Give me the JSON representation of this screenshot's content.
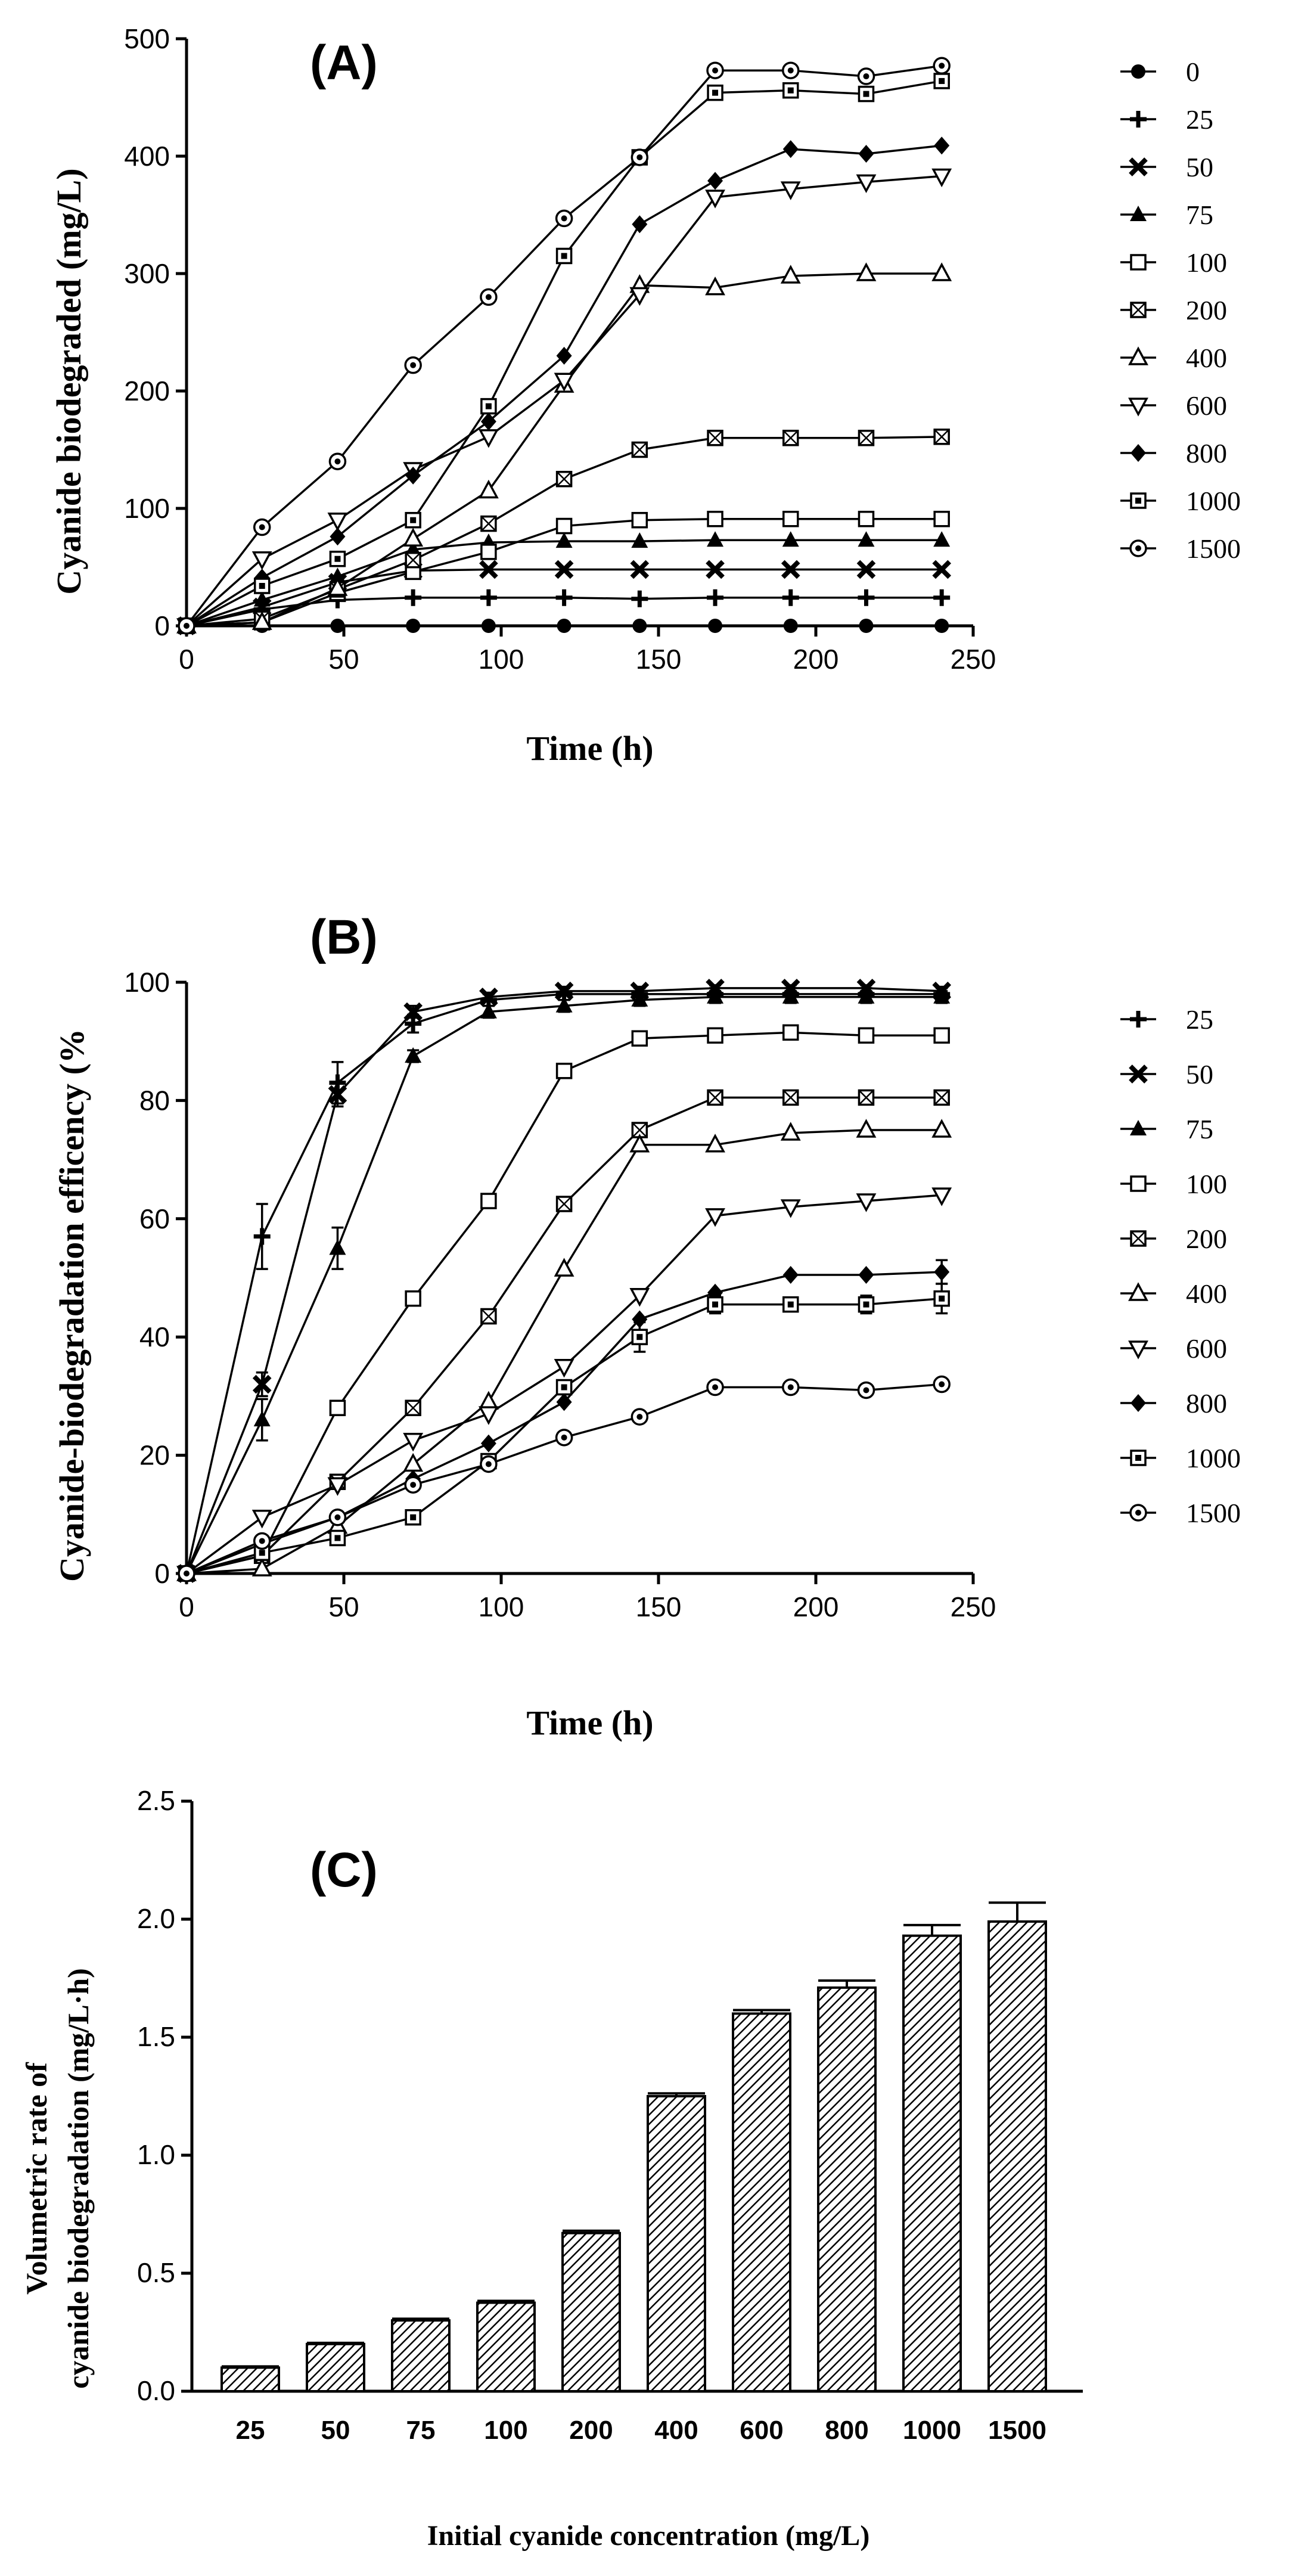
{
  "chart_data": [
    {
      "type": "line",
      "panel_label": "(A)",
      "title": "",
      "xlabel": "Time (h)",
      "ylabel": "Cyanide biodegraded (mg/L)",
      "xlim": [
        0,
        250
      ],
      "ylim": [
        0,
        500
      ],
      "xticks": [
        0,
        50,
        100,
        150,
        200,
        250
      ],
      "yticks": [
        0,
        100,
        200,
        300,
        400,
        500
      ],
      "legend_position": "right",
      "x": [
        0,
        24,
        48,
        72,
        96,
        120,
        144,
        168,
        192,
        216,
        240
      ],
      "series": [
        {
          "name": "0",
          "marker": "filled-circle",
          "values": [
            0,
            0,
            0,
            0,
            0,
            0,
            0,
            0,
            0,
            0,
            0
          ]
        },
        {
          "name": "25",
          "marker": "plus",
          "values": [
            0,
            14,
            22,
            24,
            24,
            24,
            23,
            24,
            24,
            24,
            24
          ]
        },
        {
          "name": "50",
          "marker": "cross",
          "values": [
            0,
            16,
            37,
            47,
            48,
            48,
            48,
            48,
            48,
            48,
            48
          ]
        },
        {
          "name": "75",
          "marker": "filled-triangle",
          "values": [
            0,
            22,
            42,
            65,
            71,
            72,
            72,
            73,
            73,
            73,
            73
          ]
        },
        {
          "name": "100",
          "marker": "open-square",
          "values": [
            0,
            3,
            28,
            46,
            63,
            85,
            90,
            91,
            91,
            91,
            91
          ]
        },
        {
          "name": "200",
          "marker": "crossed-square",
          "values": [
            0,
            6,
            31,
            56,
            87,
            125,
            150,
            160,
            160,
            160,
            161
          ]
        },
        {
          "name": "400",
          "marker": "open-triangle",
          "values": [
            0,
            3,
            32,
            74,
            115,
            205,
            290,
            288,
            298,
            300,
            300
          ]
        },
        {
          "name": "600",
          "marker": "open-triangle-down",
          "values": [
            0,
            57,
            90,
            133,
            161,
            209,
            282,
            365,
            372,
            378,
            383
          ]
        },
        {
          "name": "800",
          "marker": "filled-diamond",
          "values": [
            0,
            41,
            76,
            128,
            174,
            230,
            342,
            379,
            406,
            402,
            409
          ]
        },
        {
          "name": "1000",
          "marker": "dotted-square",
          "values": [
            0,
            34,
            57,
            90,
            187,
            315,
            399,
            454,
            456,
            453,
            464
          ]
        },
        {
          "name": "1500",
          "marker": "circle-dot",
          "values": [
            0,
            84,
            140,
            222,
            280,
            347,
            399,
            473,
            473,
            468,
            477
          ]
        }
      ]
    },
    {
      "type": "line",
      "panel_label": "(B)",
      "title": "",
      "xlabel": "Time (h)",
      "ylabel": "Cyanide-biodegradation efficency (%",
      "xlim": [
        0,
        250
      ],
      "ylim": [
        0,
        100
      ],
      "xticks": [
        0,
        50,
        100,
        150,
        200,
        250
      ],
      "yticks": [
        0,
        20,
        40,
        60,
        80,
        100
      ],
      "legend_position": "right",
      "x": [
        0,
        24,
        48,
        72,
        96,
        120,
        144,
        168,
        192,
        216,
        240
      ],
      "series": [
        {
          "name": "25",
          "marker": "plus",
          "values": [
            0,
            57,
            83,
            93,
            97,
            98,
            98,
            98,
            98,
            98,
            98
          ],
          "errors": [
            0,
            5.5,
            3.5,
            1.5,
            1,
            1,
            1,
            1,
            1,
            1,
            1
          ]
        },
        {
          "name": "50",
          "marker": "cross",
          "values": [
            0,
            32,
            81,
            95,
            97.5,
            98.5,
            98.5,
            99,
            99,
            99,
            98.5
          ],
          "errors": [
            0,
            2,
            2,
            1,
            0.5,
            0.5,
            0.5,
            0.5,
            0.5,
            0.5,
            0.5
          ]
        },
        {
          "name": "75",
          "marker": "filled-triangle",
          "values": [
            0,
            26,
            55,
            87.5,
            95,
            96,
            97,
            97.5,
            97.5,
            97.5,
            97.5
          ],
          "errors": [
            0,
            3.5,
            3.5,
            1,
            1,
            1,
            1,
            1,
            1,
            1,
            1
          ]
        },
        {
          "name": "100",
          "marker": "open-square",
          "values": [
            0,
            3,
            28,
            46.5,
            63,
            85,
            90.5,
            91,
            91.5,
            91,
            91
          ]
        },
        {
          "name": "200",
          "marker": "crossed-square",
          "values": [
            0,
            3,
            15.5,
            28,
            43.5,
            62.5,
            75,
            80.5,
            80.5,
            80.5,
            80.5
          ]
        },
        {
          "name": "400",
          "marker": "open-triangle",
          "values": [
            0,
            0.8,
            8,
            18.5,
            29,
            51.5,
            72.5,
            72.5,
            74.5,
            75,
            75
          ]
        },
        {
          "name": "600",
          "marker": "open-triangle-down",
          "values": [
            0,
            9.5,
            15,
            22.5,
            27,
            35,
            47,
            60.5,
            62,
            63,
            64
          ]
        },
        {
          "name": "800",
          "marker": "filled-diamond",
          "values": [
            0,
            5,
            9.5,
            16,
            22,
            29,
            43,
            47.5,
            50.5,
            50.5,
            51
          ],
          "errors": [
            0,
            0,
            0,
            0,
            0,
            0,
            0,
            0,
            0,
            0,
            2
          ]
        },
        {
          "name": "1000",
          "marker": "dotted-square",
          "values": [
            0,
            3.5,
            6,
            9.5,
            19,
            31.5,
            40,
            45.5,
            45.5,
            45.5,
            46.5
          ],
          "errors": [
            0,
            0,
            0,
            0,
            0,
            0,
            2.5,
            1.5,
            1,
            1.5,
            2.5
          ]
        },
        {
          "name": "1500",
          "marker": "circle-dot",
          "values": [
            0,
            5.5,
            9.5,
            15,
            18.5,
            23,
            26.5,
            31.5,
            31.5,
            31,
            32
          ]
        }
      ]
    },
    {
      "type": "bar",
      "panel_label": "(C)",
      "title": "",
      "xlabel": "Initial cyanide concentration (mg/L)",
      "ylabel_line1": "Volumetric  rate of",
      "ylabel_line2": "cyanide biodegradation (mg/L·h)",
      "ylim": [
        0,
        2.5
      ],
      "yticks": [
        "0.0",
        "0.5",
        "1.0",
        "1.5",
        "2.0",
        "2.5"
      ],
      "categories": [
        "25",
        "50",
        "75",
        "100",
        "200",
        "400",
        "600",
        "800",
        "1000",
        "1500"
      ],
      "values": [
        0.1,
        0.2,
        0.3,
        0.375,
        0.67,
        1.25,
        1.6,
        1.71,
        1.93,
        1.99
      ],
      "errors": [
        0.005,
        0.005,
        0.007,
        0.008,
        0.01,
        0.012,
        0.015,
        0.03,
        0.045,
        0.08
      ]
    }
  ]
}
